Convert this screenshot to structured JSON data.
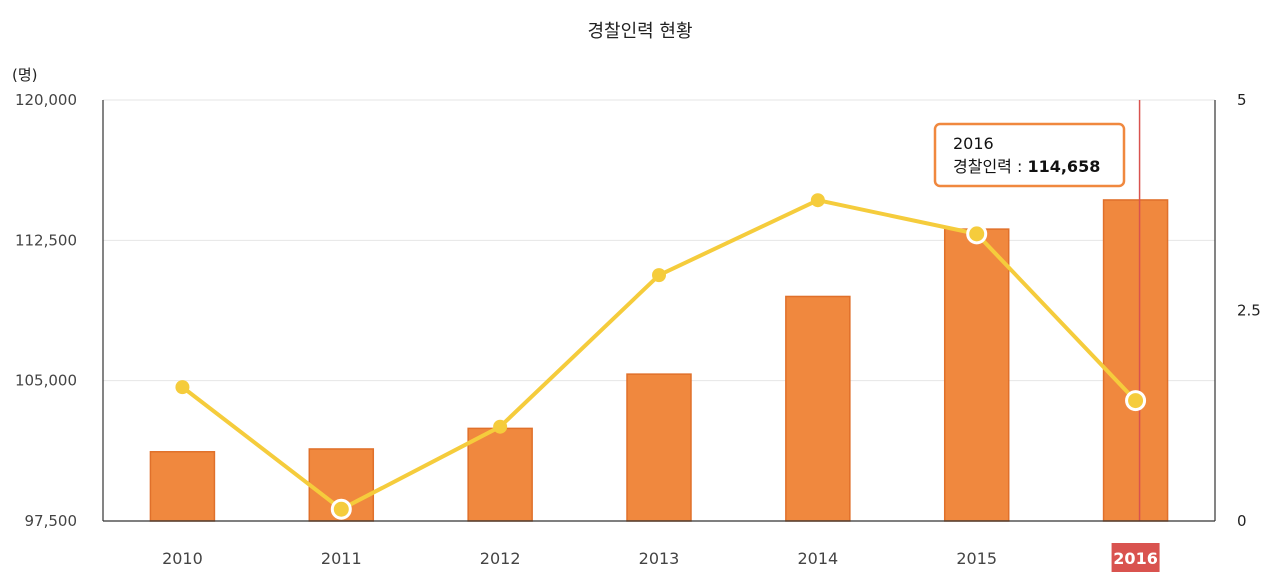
{
  "chart_data": {
    "type": "bar",
    "title": "경찰인력 현황",
    "ylabel_left_unit": "(명)",
    "categories": [
      "2010",
      "2011",
      "2012",
      "2013",
      "2014",
      "2015",
      "2016"
    ],
    "series": [
      {
        "name": "경찰인력",
        "type": "bar",
        "axis": "left",
        "values": [
          101200,
          101350,
          102450,
          105350,
          109500,
          113100,
          114658
        ],
        "color": "#f0883e"
      },
      {
        "type": "line",
        "axis": "right",
        "values": [
          1.59,
          0.14,
          1.12,
          2.92,
          3.81,
          3.41,
          1.43
        ],
        "color": "#f5cc3c"
      }
    ],
    "y_left": {
      "min": 97500,
      "max": 120000,
      "ticks": [
        "97,500",
        "105,000",
        "112,500",
        "120,000"
      ],
      "tick_values": [
        97500,
        105000,
        112500,
        120000
      ]
    },
    "y_right": {
      "min": 0,
      "max": 5,
      "ticks": [
        "0",
        "2.5",
        "5"
      ],
      "tick_values": [
        0,
        2.5,
        5
      ]
    },
    "grid": true,
    "highlight": {
      "category": "2016",
      "tooltip_title": "2016",
      "tooltip_label": "경찰인력 : ",
      "tooltip_value": "114,658"
    },
    "colors": {
      "bar_fill": "#f0883e",
      "bar_stroke": "#e0702a",
      "line": "#f5cc3c",
      "highlight": "#d9534f",
      "tooltip_border": "#f0883e",
      "grid": "#e6e6e6",
      "axis": "#333333"
    }
  }
}
